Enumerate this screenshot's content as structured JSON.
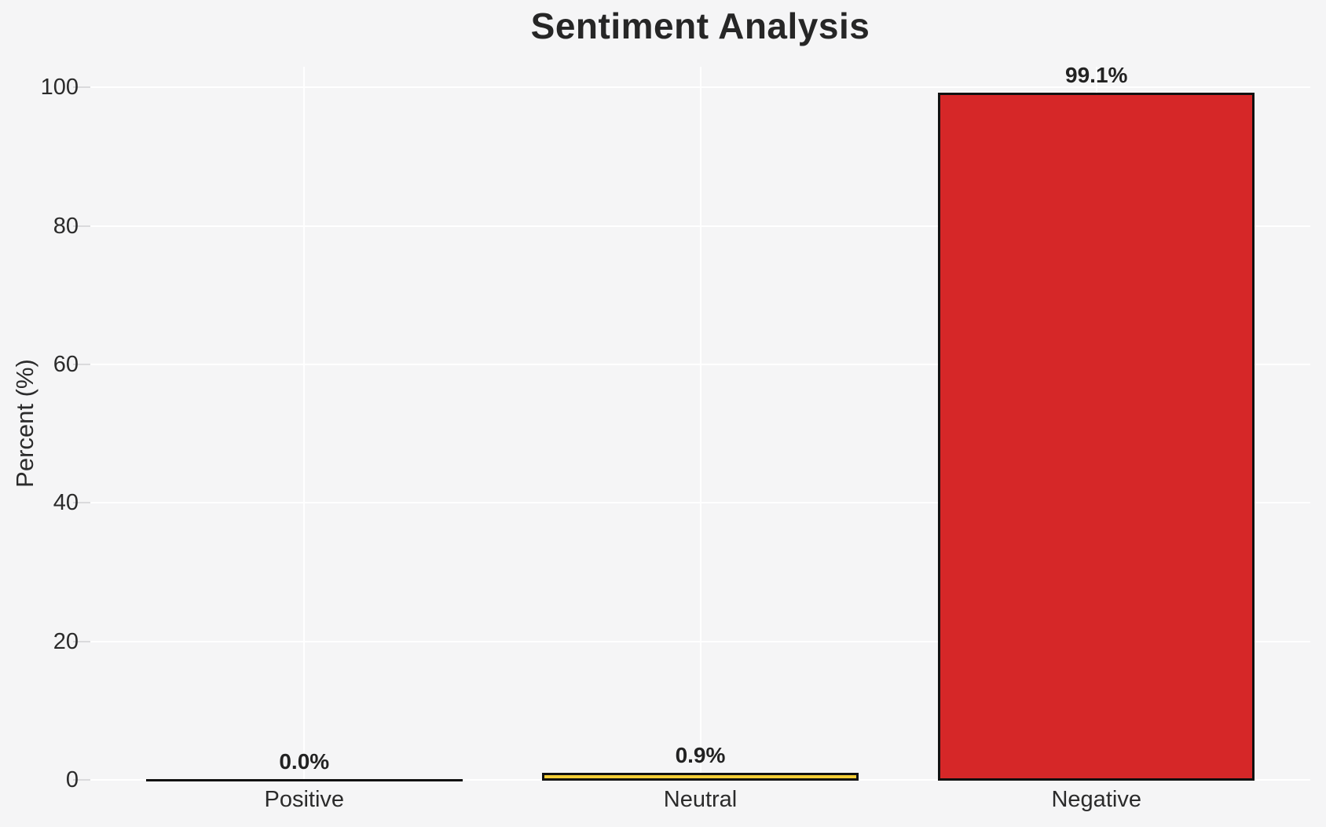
{
  "chart_data": {
    "type": "bar",
    "title": "Sentiment Analysis",
    "xlabel": "",
    "ylabel": "Percent (%)",
    "categories": [
      "Positive",
      "Neutral",
      "Negative"
    ],
    "values": [
      0.0,
      0.9,
      99.1
    ],
    "value_labels": [
      "0.0%",
      "0.9%",
      "99.1%"
    ],
    "bar_colors": [
      "none",
      "#f3cd37",
      "#d62728"
    ],
    "bar_edge_color": "#111111",
    "yticks": [
      0,
      20,
      40,
      60,
      80,
      100
    ],
    "ylim": [
      0,
      103
    ],
    "grid": true,
    "grid_color": "#ffffff",
    "panel_background": "#f5f5f6",
    "text_color": "#2b2b2b",
    "legend": "none"
  }
}
